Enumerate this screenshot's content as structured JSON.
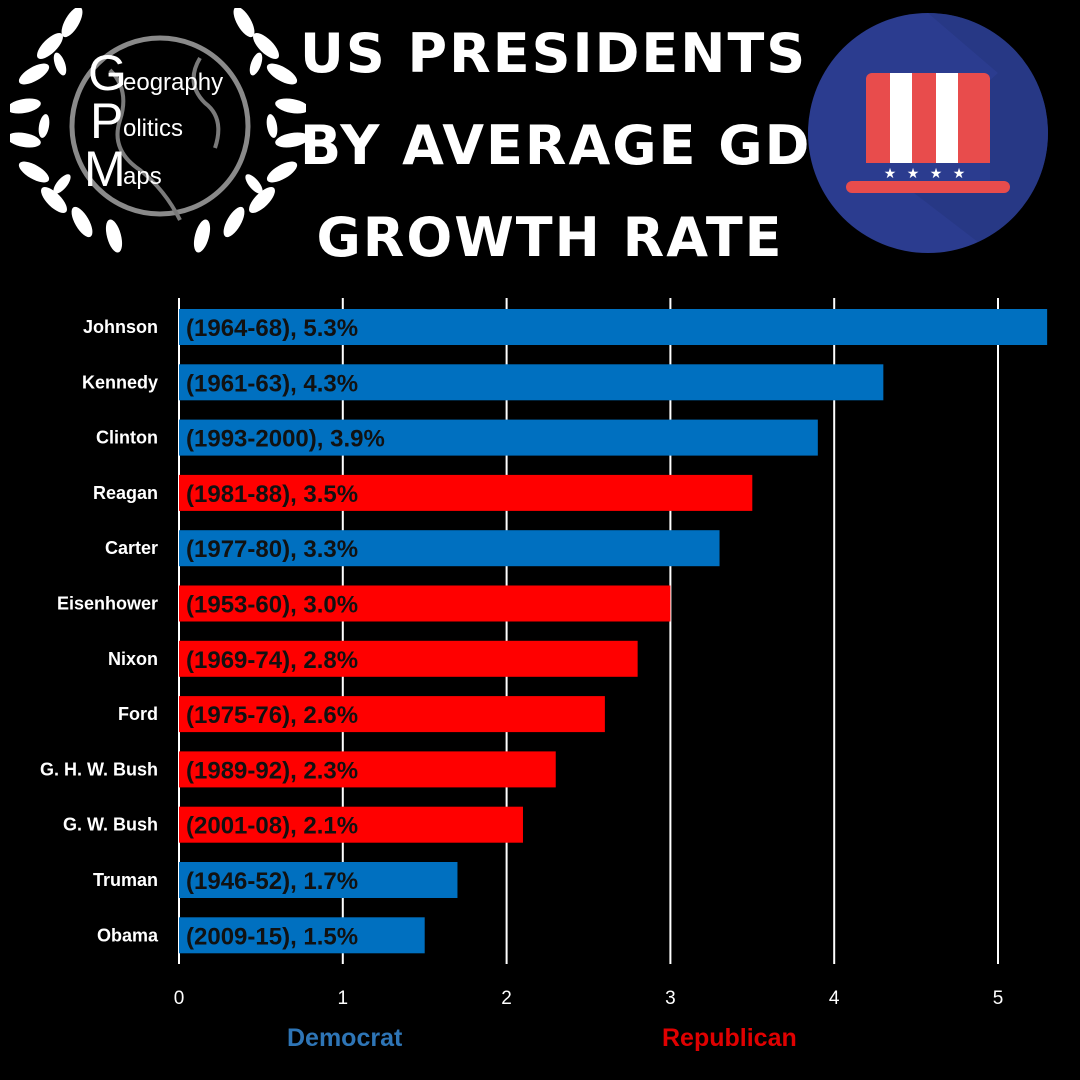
{
  "title": {
    "line1": "US PRESIDENTS",
    "line2": "BY AVERAGE GDP",
    "line3": "GROWTH RATE"
  },
  "logo": {
    "letter_g": "G",
    "rest_g": "eography",
    "letter_p": "P",
    "rest_p": "olitics",
    "letter_m": "M",
    "rest_m": "aps"
  },
  "legend": {
    "democrat": "Democrat",
    "republican": "Republican"
  },
  "colors": {
    "democrat": "#0070C0",
    "republican": "#FF0000",
    "democrat_label": "#2E75B6",
    "republican_label": "#E00000",
    "hat_badge": "#2B3C8F"
  },
  "icon": "uncle-sam-hat-icon",
  "chart_data": {
    "type": "bar",
    "orientation": "horizontal",
    "title": "US PRESIDENTS BY AVERAGE GDP GROWTH RATE",
    "xlabel": "",
    "ylabel": "",
    "xlim": [
      0,
      5.3
    ],
    "xticks": [
      0,
      1,
      2,
      3,
      4,
      5
    ],
    "grid": true,
    "legend_position": "bottom",
    "categories": [
      "Johnson",
      "Kennedy",
      "Clinton",
      "Reagan",
      "Carter",
      "Eisenhower",
      "Nixon",
      "Ford",
      "G. H. W. Bush",
      "G. W. Bush",
      "Truman",
      "Obama"
    ],
    "values": [
      5.3,
      4.3,
      3.9,
      3.5,
      3.3,
      3.0,
      2.8,
      2.6,
      2.3,
      2.1,
      1.7,
      1.5
    ],
    "party": [
      "Democrat",
      "Democrat",
      "Democrat",
      "Republican",
      "Democrat",
      "Republican",
      "Republican",
      "Republican",
      "Republican",
      "Republican",
      "Democrat",
      "Democrat"
    ],
    "data_labels": [
      "(1964-68), 5.3%",
      "(1961-63), 4.3%",
      "(1993-2000), 3.9%",
      "(1981-88), 3.5%",
      "(1977-80), 3.3%",
      "(1953-60), 3.0%",
      "(1969-74), 2.8%",
      "(1975-76), 2.6%",
      "(1989-92), 2.3%",
      "(2001-08), 2.1%",
      "(1946-52), 1.7%",
      "(2009-15), 1.5%"
    ]
  }
}
